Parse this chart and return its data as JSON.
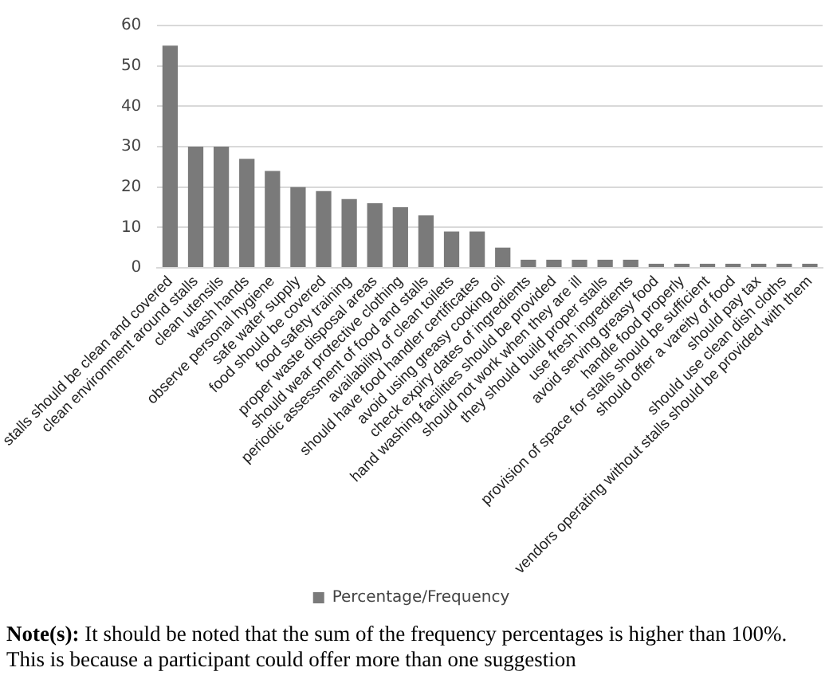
{
  "chart_data": {
    "type": "bar",
    "categories": [
      "stalls should be clean and covered",
      "clean environment around stalls",
      "clean utensils",
      "wash hands",
      "observe personal hygiene",
      "safe water supply",
      "food should be covered",
      "food safety training",
      "proper waste disposal areas",
      "should wear protective clothing",
      "periodic assessment of food and stalls",
      "availability of clean toilets",
      "should have food handler certificates",
      "avoid using greasy cooking oil",
      "check expiry dates of ingredients",
      "hand washing facilities should be provided",
      "should not work when they are ill",
      "they should build proper stalls",
      "use fresh ingredients",
      "avoid serving greasy food",
      "handle food properly",
      "provision of space for stalls should be sufficient",
      "should offer a vareity of food",
      "should pay tax",
      "should use clean dish cloths",
      "vendors operating without stalls should be provided with them"
    ],
    "series": [
      {
        "name": "Percentage/Frequency",
        "color": "#7a7a7a",
        "values": [
          55,
          30,
          30,
          27,
          24,
          20,
          19,
          17,
          16,
          15,
          13,
          9,
          9,
          5,
          2,
          2,
          2,
          2,
          2,
          1,
          1,
          1,
          1,
          1,
          1,
          1
        ]
      }
    ],
    "ylim": [
      0,
      60
    ],
    "yticks": [
      0,
      10,
      20,
      30,
      40,
      50,
      60
    ],
    "grid": "y",
    "legend": "bottom",
    "annotations": [
      "Note(s): It should be noted that the sum of the frequency percentages is higher than 100%. This is because a participant could offer more than one suggestion"
    ]
  }
}
